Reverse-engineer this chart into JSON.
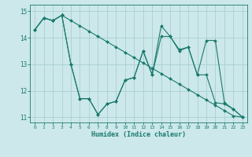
{
  "xlabel": "Humidex (Indice chaleur)",
  "bg_color": "#cce8ea",
  "grid_color": "#aacfd2",
  "line_color": "#1a7a6e",
  "xlim": [
    -0.5,
    23.5
  ],
  "ylim": [
    10.8,
    15.25
  ],
  "yticks": [
    11,
    12,
    13,
    14,
    15
  ],
  "xticks": [
    0,
    1,
    2,
    3,
    4,
    5,
    6,
    7,
    8,
    9,
    10,
    11,
    12,
    13,
    14,
    15,
    16,
    17,
    18,
    19,
    20,
    21,
    22,
    23
  ],
  "series": [
    [
      14.3,
      14.75,
      14.65,
      14.85,
      14.65,
      14.45,
      14.25,
      14.05,
      13.85,
      13.65,
      13.45,
      13.25,
      13.05,
      12.85,
      12.65,
      12.45,
      12.25,
      12.05,
      11.85,
      11.65,
      11.45,
      11.25,
      11.05,
      11.0
    ],
    [
      14.3,
      14.75,
      14.65,
      14.85,
      13.0,
      11.7,
      11.7,
      11.1,
      11.5,
      11.6,
      12.4,
      12.5,
      13.5,
      12.6,
      14.05,
      14.05,
      13.5,
      13.65,
      12.6,
      12.6,
      11.55,
      11.5,
      11.3,
      11.0
    ],
    [
      14.3,
      14.75,
      14.65,
      14.85,
      13.0,
      11.7,
      11.7,
      11.1,
      11.5,
      11.6,
      12.4,
      12.5,
      13.5,
      12.6,
      14.45,
      14.05,
      13.55,
      13.65,
      12.6,
      13.9,
      13.9,
      11.55,
      11.3,
      11.0
    ]
  ]
}
